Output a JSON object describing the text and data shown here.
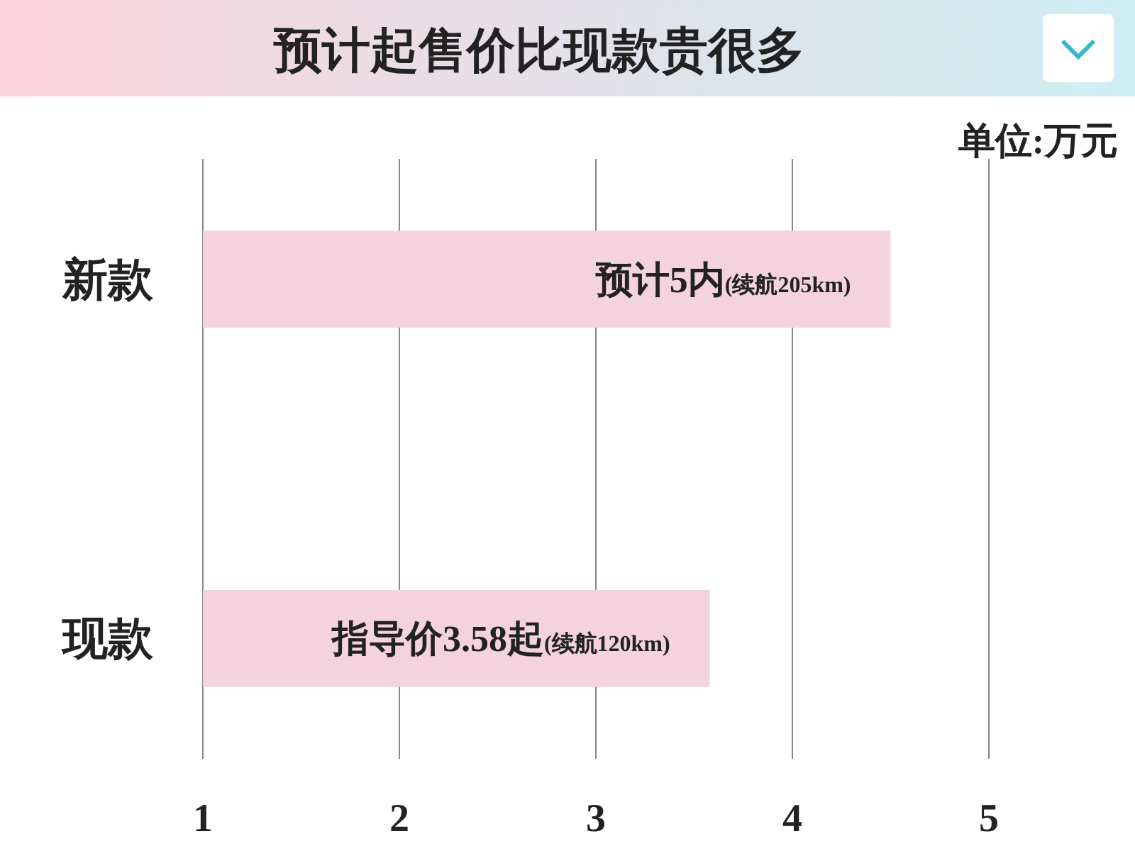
{
  "chart_data": {
    "type": "bar",
    "orientation": "horizontal",
    "title": "预计起售价比现款贵很多",
    "annotations": [
      "单位:万元"
    ],
    "categories": [
      "新款",
      "现款"
    ],
    "values": [
      4.5,
      3.58
    ],
    "value_labels": [
      "预计5内(续航205km)",
      "指导价3.58起(续航120km)"
    ],
    "color": "#f4d3de",
    "xlim": [
      1,
      5
    ],
    "xticks": [
      1,
      2,
      3,
      4,
      5
    ],
    "grid": "x"
  }
}
